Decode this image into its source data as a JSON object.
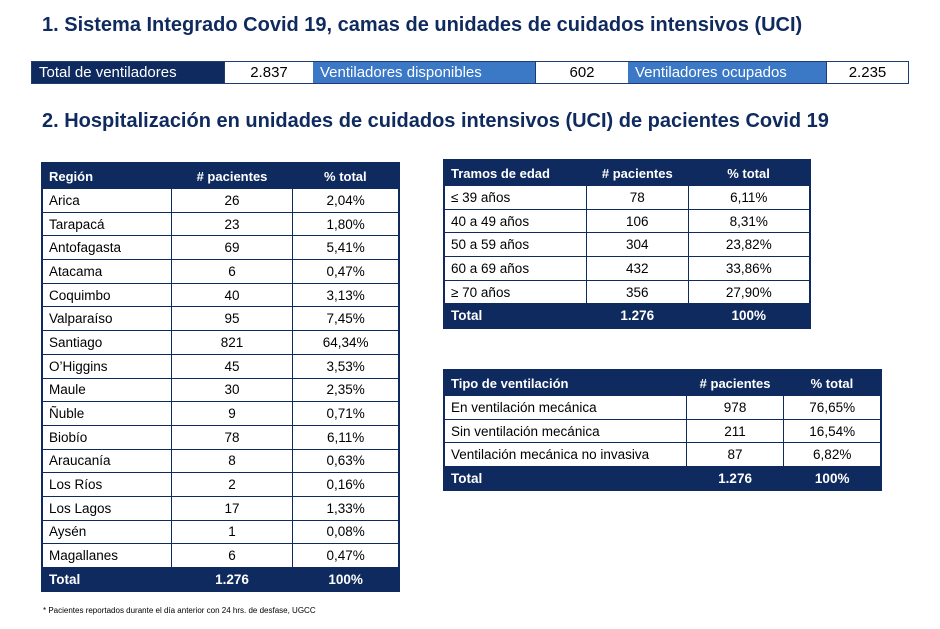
{
  "section1_title": "1. Sistema Integrado Covid 19, camas de unidades de cuidados intensivos (UCI)",
  "summary": {
    "total_label": "Total de ventiladores",
    "total_value": "2.837",
    "available_label": "Ventiladores disponibles",
    "available_value": "602",
    "occupied_label": "Ventiladores ocupados",
    "occupied_value": "2.235"
  },
  "section2_title": "2. Hospitalización en unidades de cuidados intensivos (UCI) de pacientes Covid 19",
  "region_table": {
    "headers": [
      "Región",
      "# pacientes",
      "% total"
    ],
    "rows": [
      [
        "Arica",
        "26",
        "2,04%"
      ],
      [
        "Tarapacá",
        "23",
        "1,80%"
      ],
      [
        "Antofagasta",
        "69",
        "5,41%"
      ],
      [
        "Atacama",
        "6",
        "0,47%"
      ],
      [
        "Coquimbo",
        "40",
        "3,13%"
      ],
      [
        "Valparaíso",
        "95",
        "7,45%"
      ],
      [
        "Santiago",
        "821",
        "64,34%"
      ],
      [
        "O’Higgins",
        "45",
        "3,53%"
      ],
      [
        "Maule",
        "30",
        "2,35%"
      ],
      [
        "Ñuble",
        "9",
        "0,71%"
      ],
      [
        "Biobío",
        "78",
        "6,11%"
      ],
      [
        "Araucanía",
        "8",
        "0,63%"
      ],
      [
        "Los Ríos",
        "2",
        "0,16%"
      ],
      [
        "Los Lagos",
        "17",
        "1,33%"
      ],
      [
        "Aysén",
        "1",
        "0,08%"
      ],
      [
        "Magallanes",
        "6",
        "0,47%"
      ]
    ],
    "total": [
      "Total",
      "1.276",
      "100%"
    ]
  },
  "age_table": {
    "headers": [
      "Tramos de edad",
      "# pacientes",
      "% total"
    ],
    "rows": [
      [
        "≤ 39 años",
        "78",
        "6,11%"
      ],
      [
        "40 a 49 años",
        "106",
        "8,31%"
      ],
      [
        "50 a 59 años",
        "304",
        "23,82%"
      ],
      [
        "60 a 69 años",
        "432",
        "33,86%"
      ],
      [
        "≥ 70 años",
        "356",
        "27,90%"
      ]
    ],
    "total": [
      "Total",
      "1.276",
      "100%"
    ]
  },
  "vent_table": {
    "headers": [
      "Tipo de ventilación",
      "# pacientes",
      "% total"
    ],
    "rows": [
      [
        "En ventilación mecánica",
        "978",
        "76,65%"
      ],
      [
        "Sin ventilación mecánica",
        "211",
        "16,54%"
      ],
      [
        "Ventilación mecánica no invasiva",
        "87",
        "6,82%"
      ]
    ],
    "total": [
      "Total",
      "1.276",
      "100%"
    ]
  },
  "footnote": "* Pacientes reportados durante el día anterior con 24 hrs. de desfase, UGCC"
}
